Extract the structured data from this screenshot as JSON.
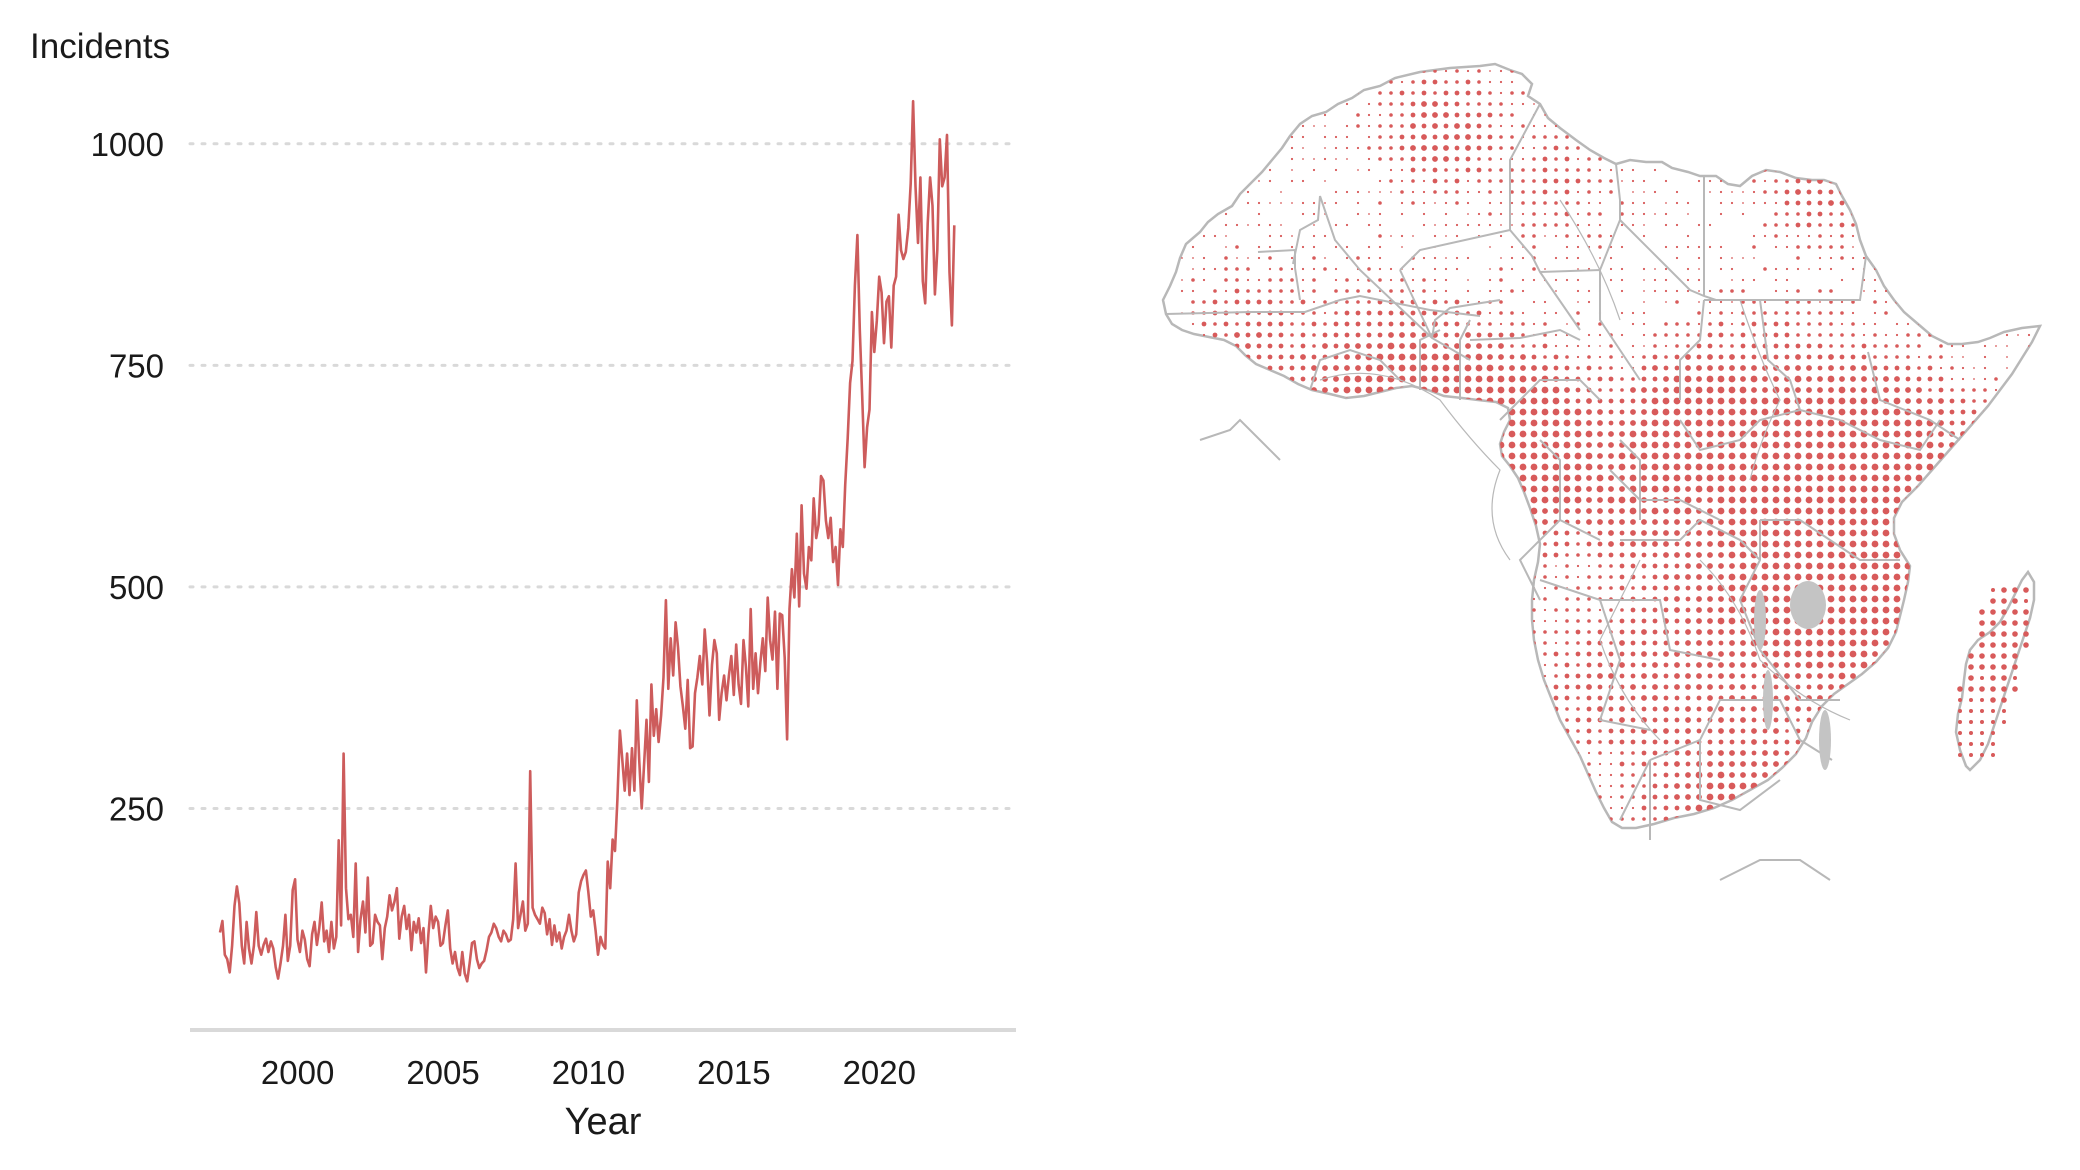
{
  "colors": {
    "series": "#cd5c5c",
    "grid": "#d9d9d9",
    "axis_line": "#d9d9d9",
    "map_border": "#b8b8b8",
    "map_land": "#ffffff",
    "map_water": "#c4c4c4",
    "map_dot": "#d85a5a"
  },
  "chart_data": [
    {
      "type": "line",
      "title": "",
      "xlabel": "Year",
      "ylabel": "Incidents",
      "xlim": [
        1996.3,
        2024.7
      ],
      "ylim": [
        0,
        1090
      ],
      "x_ticks": [
        2000,
        2005,
        2010,
        2015,
        2020
      ],
      "y_ticks": [
        250,
        500,
        750,
        1000
      ],
      "grid": "horizontal dotted",
      "x_start": 1997.33,
      "x_step": 0.08333,
      "series": [
        {
          "values": [
            110,
            123,
            85,
            80,
            65,
            95,
            140,
            162,
            143,
            95,
            75,
            122,
            92,
            75,
            95,
            133,
            95,
            85,
            96,
            103,
            88,
            100,
            92,
            71,
            58,
            75,
            95,
            130,
            78,
            95,
            158,
            170,
            102,
            88,
            112,
            102,
            80,
            72,
            108,
            122,
            96,
            115,
            144,
            100,
            112,
            88,
            122,
            92,
            105,
            214,
            118,
            312,
            160,
            125,
            130,
            105,
            188,
            88,
            125,
            145,
            110,
            172,
            95,
            98,
            130,
            122,
            118,
            80,
            115,
            128,
            152,
            135,
            145,
            160,
            103,
            128,
            140,
            114,
            130,
            90,
            122,
            110,
            126,
            98,
            115,
            65,
            108,
            140,
            115,
            128,
            122,
            95,
            98,
            118,
            135,
            92,
            75,
            88,
            70,
            62,
            88,
            64,
            55,
            75,
            98,
            100,
            80,
            70,
            75,
            78,
            90,
            105,
            110,
            120,
            115,
            105,
            100,
            112,
            108,
            100,
            102,
            125,
            188,
            115,
            130,
            145,
            112,
            120,
            292,
            138,
            130,
            125,
            120,
            138,
            132,
            108,
            125,
            96,
            118,
            100,
            110,
            92,
            105,
            112,
            130,
            112,
            100,
            108,
            155,
            168,
            175,
            180,
            156,
            128,
            135,
            112,
            85,
            105,
            96,
            92,
            190,
            160,
            215,
            202,
            260,
            338,
            305,
            270,
            312,
            265,
            318,
            270,
            372,
            305,
            250,
            300,
            350,
            280,
            390,
            332,
            362,
            325,
            355,
            398,
            485,
            385,
            442,
            400,
            460,
            432,
            388,
            365,
            340,
            395,
            318,
            320,
            380,
            398,
            422,
            390,
            452,
            415,
            355,
            412,
            440,
            425,
            350,
            380,
            400,
            372,
            400,
            422,
            378,
            435,
            390,
            368,
            440,
            410,
            365,
            475,
            385,
            425,
            380,
            415,
            442,
            405,
            488,
            440,
            418,
            472,
            385,
            470,
            468,
            420,
            328,
            475,
            520,
            488,
            560,
            478,
            592,
            515,
            498,
            545,
            530,
            600,
            555,
            570,
            625,
            620,
            575,
            555,
            578,
            528,
            545,
            502,
            565,
            545,
            615,
            668,
            730,
            755,
            840,
            897,
            790,
            715,
            635,
            680,
            700,
            810,
            765,
            800,
            850,
            832,
            775,
            822,
            828,
            770,
            840,
            850,
            920,
            880,
            870,
            878,
            905,
            955,
            1048,
            952,
            888,
            962,
            845,
            820,
            910,
            962,
            930,
            830,
            880,
            1005,
            952,
            962,
            1010,
            855,
            795,
            908
          ]
        }
      ]
    },
    {
      "type": "map",
      "title": "",
      "region": "Africa",
      "encoding": "dot size = incident density"
    }
  ]
}
